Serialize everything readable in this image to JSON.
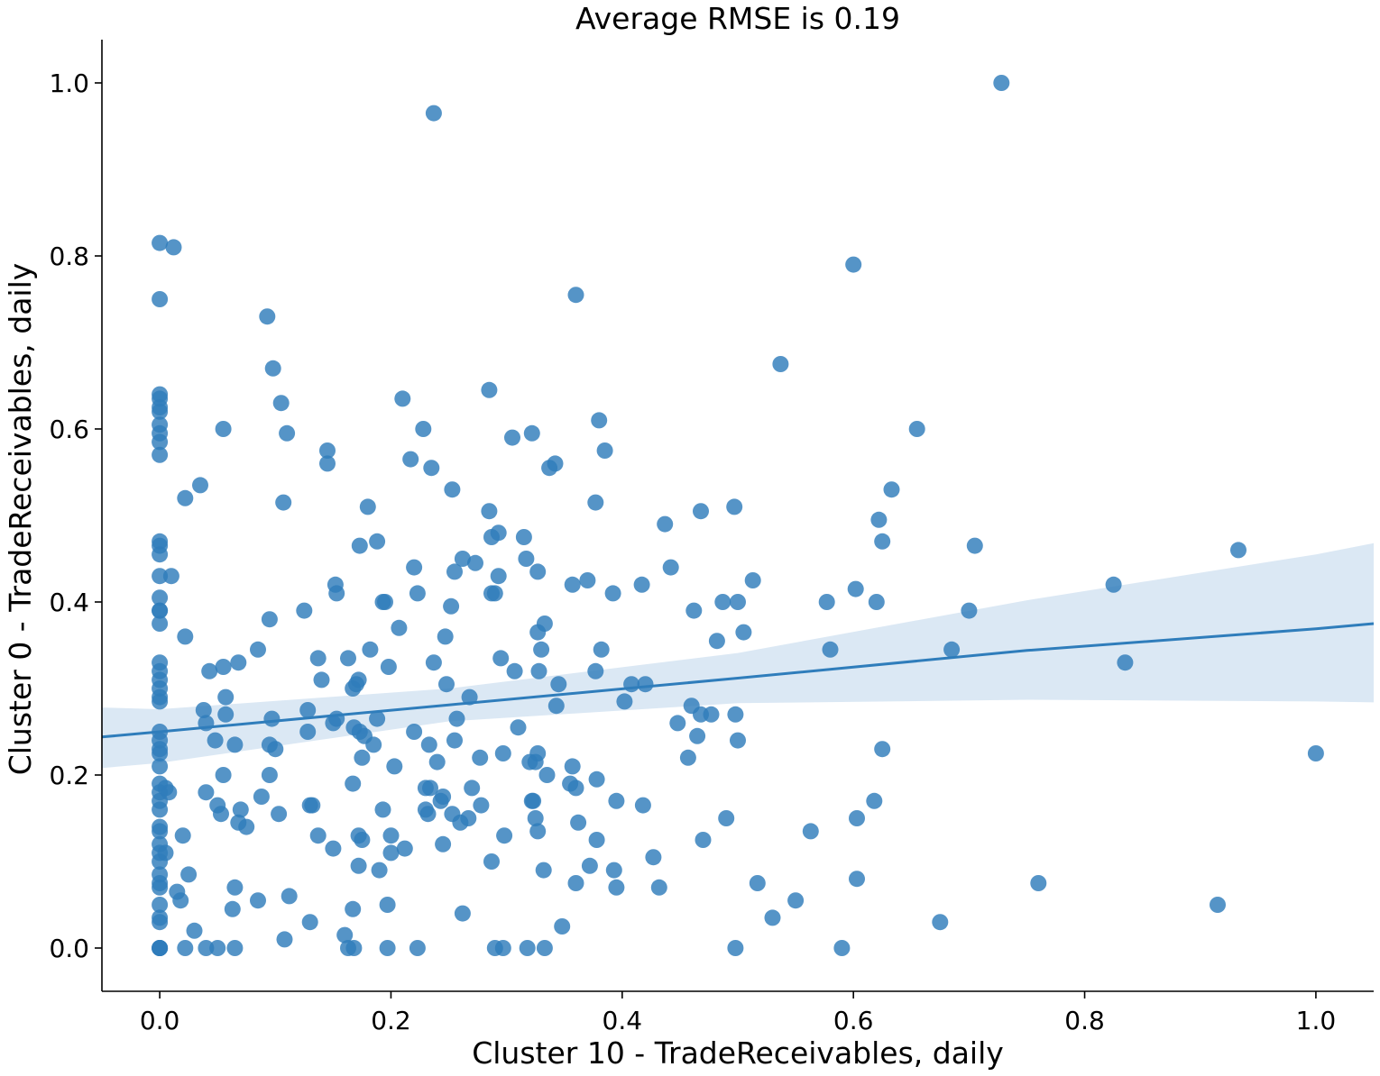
{
  "chart_data": {
    "type": "scatter",
    "title": "Average RMSE is 0.19",
    "xlabel": "Cluster 10 - TradeReceivables, daily",
    "ylabel": "Cluster 0 - TradeReceivables, daily",
    "xlim": [
      -0.05,
      1.05
    ],
    "ylim": [
      -0.05,
      1.05
    ],
    "xticks": [
      0.0,
      0.2,
      0.4,
      0.6,
      0.8,
      1.0
    ],
    "yticks": [
      0.0,
      0.2,
      0.4,
      0.6,
      0.8,
      1.0
    ],
    "tick_labels": [
      "0.0",
      "0.2",
      "0.4",
      "0.6",
      "0.8",
      "1.0"
    ],
    "grid": false,
    "colors": {
      "points": "#2f7dbb",
      "line": "#2f7dbb",
      "band": "#c8dcee"
    },
    "regression": {
      "x": [
        -0.05,
        0.0,
        0.25,
        0.5,
        0.75,
        1.0,
        1.05
      ],
      "y": [
        0.244,
        0.25,
        0.281,
        0.312,
        0.344,
        0.369,
        0.375
      ],
      "lower": [
        0.208,
        0.214,
        0.262,
        0.283,
        0.287,
        0.285,
        0.284
      ],
      "upper": [
        0.278,
        0.276,
        0.3,
        0.341,
        0.402,
        0.455,
        0.468
      ]
    },
    "points": [
      [
        0,
        0
      ],
      [
        0,
        0
      ],
      [
        0,
        0
      ],
      [
        0,
        0
      ],
      [
        0,
        0.03
      ],
      [
        0,
        0.035
      ],
      [
        0,
        0.05
      ],
      [
        0,
        0.07
      ],
      [
        0,
        0.075
      ],
      [
        0,
        0.085
      ],
      [
        0,
        0.1
      ],
      [
        0,
        0.11
      ],
      [
        0,
        0.12
      ],
      [
        0,
        0.135
      ],
      [
        0,
        0.14
      ],
      [
        0,
        0.16
      ],
      [
        0,
        0.17
      ],
      [
        0,
        0.18
      ],
      [
        0,
        0.19
      ],
      [
        0,
        0.21
      ],
      [
        0,
        0.225
      ],
      [
        0,
        0.23
      ],
      [
        0,
        0.24
      ],
      [
        0,
        0.25
      ],
      [
        0,
        0.285
      ],
      [
        0,
        0.29
      ],
      [
        0,
        0.3
      ],
      [
        0,
        0.31
      ],
      [
        0,
        0.32
      ],
      [
        0,
        0.33
      ],
      [
        0,
        0.375
      ],
      [
        0,
        0.39
      ],
      [
        0,
        0.39
      ],
      [
        0,
        0.405
      ],
      [
        0,
        0.43
      ],
      [
        0,
        0.455
      ],
      [
        0,
        0.465
      ],
      [
        0,
        0.47
      ],
      [
        0,
        0.57
      ],
      [
        0,
        0.585
      ],
      [
        0,
        0.595
      ],
      [
        0,
        0.605
      ],
      [
        0,
        0.62
      ],
      [
        0,
        0.625
      ],
      [
        0,
        0.635
      ],
      [
        0,
        0.64
      ],
      [
        0,
        0.75
      ],
      [
        0,
        0.815
      ],
      [
        0.005,
        0.185
      ],
      [
        0.008,
        0.18
      ],
      [
        0.005,
        0.11
      ],
      [
        0.01,
        0.43
      ],
      [
        0.012,
        0.81
      ],
      [
        0.015,
        0.065
      ],
      [
        0.018,
        0.055
      ],
      [
        0.02,
        0.13
      ],
      [
        0.022,
        0.52
      ],
      [
        0.022,
        0.36
      ],
      [
        0.022,
        0
      ],
      [
        0.025,
        0.085
      ],
      [
        0.03,
        0.02
      ],
      [
        0.035,
        0.535
      ],
      [
        0.038,
        0.275
      ],
      [
        0.04,
        0.26
      ],
      [
        0.04,
        0.18
      ],
      [
        0.04,
        0
      ],
      [
        0.043,
        0.32
      ],
      [
        0.048,
        0.24
      ],
      [
        0.05,
        0.165
      ],
      [
        0.05,
        0
      ],
      [
        0.053,
        0.155
      ],
      [
        0.055,
        0.6
      ],
      [
        0.055,
        0.325
      ],
      [
        0.055,
        0.2
      ],
      [
        0.057,
        0.29
      ],
      [
        0.057,
        0.27
      ],
      [
        0.063,
        0.045
      ],
      [
        0.065,
        0.235
      ],
      [
        0.065,
        0.07
      ],
      [
        0.065,
        0
      ],
      [
        0.068,
        0.33
      ],
      [
        0.068,
        0.145
      ],
      [
        0.07,
        0.16
      ],
      [
        0.075,
        0.14
      ],
      [
        0.085,
        0.345
      ],
      [
        0.085,
        0.055
      ],
      [
        0.088,
        0.175
      ],
      [
        0.093,
        0.73
      ],
      [
        0.095,
        0.38
      ],
      [
        0.095,
        0.235
      ],
      [
        0.095,
        0.2
      ],
      [
        0.097,
        0.265
      ],
      [
        0.098,
        0.67
      ],
      [
        0.1,
        0.23
      ],
      [
        0.103,
        0.155
      ],
      [
        0.105,
        0.63
      ],
      [
        0.107,
        0.515
      ],
      [
        0.108,
        0.01
      ],
      [
        0.11,
        0.595
      ],
      [
        0.112,
        0.06
      ],
      [
        0.125,
        0.39
      ],
      [
        0.128,
        0.275
      ],
      [
        0.128,
        0.25
      ],
      [
        0.13,
        0.165
      ],
      [
        0.13,
        0.03
      ],
      [
        0.132,
        0.165
      ],
      [
        0.137,
        0.335
      ],
      [
        0.137,
        0.13
      ],
      [
        0.14,
        0.31
      ],
      [
        0.145,
        0.575
      ],
      [
        0.145,
        0.56
      ],
      [
        0.15,
        0.26
      ],
      [
        0.15,
        0.115
      ],
      [
        0.152,
        0.42
      ],
      [
        0.153,
        0.41
      ],
      [
        0.153,
        0.265
      ],
      [
        0.16,
        0.015
      ],
      [
        0.163,
        0.335
      ],
      [
        0.163,
        0
      ],
      [
        0.167,
        0.3
      ],
      [
        0.167,
        0.19
      ],
      [
        0.167,
        0.045
      ],
      [
        0.168,
        0.255
      ],
      [
        0.168,
        0
      ],
      [
        0.17,
        0.305
      ],
      [
        0.172,
        0.31
      ],
      [
        0.172,
        0.13
      ],
      [
        0.172,
        0.095
      ],
      [
        0.173,
        0.25
      ],
      [
        0.173,
        0.465
      ],
      [
        0.175,
        0.125
      ],
      [
        0.175,
        0.22
      ],
      [
        0.177,
        0.245
      ],
      [
        0.18,
        0.51
      ],
      [
        0.182,
        0.345
      ],
      [
        0.185,
        0.235
      ],
      [
        0.188,
        0.47
      ],
      [
        0.188,
        0.265
      ],
      [
        0.19,
        0.09
      ],
      [
        0.193,
        0.4
      ],
      [
        0.193,
        0.16
      ],
      [
        0.195,
        0.4
      ],
      [
        0.197,
        0.05
      ],
      [
        0.197,
        0
      ],
      [
        0.198,
        0.325
      ],
      [
        0.2,
        0.13
      ],
      [
        0.2,
        0.11
      ],
      [
        0.203,
        0.21
      ],
      [
        0.207,
        0.37
      ],
      [
        0.21,
        0.635
      ],
      [
        0.212,
        0.115
      ],
      [
        0.217,
        0.565
      ],
      [
        0.22,
        0.44
      ],
      [
        0.22,
        0.25
      ],
      [
        0.223,
        0.41
      ],
      [
        0.223,
        0
      ],
      [
        0.228,
        0.6
      ],
      [
        0.23,
        0.185
      ],
      [
        0.23,
        0.16
      ],
      [
        0.232,
        0.155
      ],
      [
        0.233,
        0.235
      ],
      [
        0.234,
        0.185
      ],
      [
        0.235,
        0.555
      ],
      [
        0.237,
        0.965
      ],
      [
        0.237,
        0.33
      ],
      [
        0.24,
        0.215
      ],
      [
        0.243,
        0.17
      ],
      [
        0.245,
        0.175
      ],
      [
        0.245,
        0.12
      ],
      [
        0.247,
        0.36
      ],
      [
        0.248,
        0.305
      ],
      [
        0.252,
        0.395
      ],
      [
        0.253,
        0.155
      ],
      [
        0.253,
        0.53
      ],
      [
        0.255,
        0.435
      ],
      [
        0.255,
        0.24
      ],
      [
        0.257,
        0.265
      ],
      [
        0.26,
        0.145
      ],
      [
        0.262,
        0.45
      ],
      [
        0.262,
        0.04
      ],
      [
        0.267,
        0.15
      ],
      [
        0.268,
        0.29
      ],
      [
        0.27,
        0.185
      ],
      [
        0.273,
        0.445
      ],
      [
        0.277,
        0.22
      ],
      [
        0.278,
        0.165
      ],
      [
        0.285,
        0.645
      ],
      [
        0.285,
        0.505
      ],
      [
        0.287,
        0.41
      ],
      [
        0.287,
        0.475
      ],
      [
        0.287,
        0.1
      ],
      [
        0.29,
        0
      ],
      [
        0.29,
        0.41
      ],
      [
        0.293,
        0.43
      ],
      [
        0.293,
        0.48
      ],
      [
        0.295,
        0.335
      ],
      [
        0.297,
        0.225
      ],
      [
        0.297,
        0
      ],
      [
        0.298,
        0.13
      ],
      [
        0.305,
        0.59
      ],
      [
        0.307,
        0.32
      ],
      [
        0.31,
        0.255
      ],
      [
        0.315,
        0.475
      ],
      [
        0.317,
        0.45
      ],
      [
        0.318,
        0
      ],
      [
        0.32,
        0.215
      ],
      [
        0.322,
        0.595
      ],
      [
        0.322,
        0.17
      ],
      [
        0.323,
        0.17
      ],
      [
        0.325,
        0.15
      ],
      [
        0.325,
        0.215
      ],
      [
        0.327,
        0.225
      ],
      [
        0.327,
        0.135
      ],
      [
        0.327,
        0.435
      ],
      [
        0.327,
        0.365
      ],
      [
        0.328,
        0.32
      ],
      [
        0.33,
        0.345
      ],
      [
        0.332,
        0.09
      ],
      [
        0.333,
        0
      ],
      [
        0.333,
        0.375
      ],
      [
        0.335,
        0.2
      ],
      [
        0.337,
        0.555
      ],
      [
        0.342,
        0.56
      ],
      [
        0.343,
        0.28
      ],
      [
        0.345,
        0.305
      ],
      [
        0.348,
        0.025
      ],
      [
        0.355,
        0.19
      ],
      [
        0.357,
        0.21
      ],
      [
        0.357,
        0.42
      ],
      [
        0.36,
        0.185
      ],
      [
        0.36,
        0.075
      ],
      [
        0.36,
        0.755
      ],
      [
        0.362,
        0.145
      ],
      [
        0.37,
        0.425
      ],
      [
        0.372,
        0.095
      ],
      [
        0.377,
        0.515
      ],
      [
        0.377,
        0.32
      ],
      [
        0.378,
        0.195
      ],
      [
        0.378,
        0.125
      ],
      [
        0.38,
        0.61
      ],
      [
        0.382,
        0.345
      ],
      [
        0.385,
        0.575
      ],
      [
        0.392,
        0.41
      ],
      [
        0.393,
        0.09
      ],
      [
        0.395,
        0.07
      ],
      [
        0.395,
        0.17
      ],
      [
        0.402,
        0.285
      ],
      [
        0.408,
        0.305
      ],
      [
        0.417,
        0.42
      ],
      [
        0.418,
        0.165
      ],
      [
        0.42,
        0.305
      ],
      [
        0.427,
        0.105
      ],
      [
        0.432,
        0.07
      ],
      [
        0.437,
        0.49
      ],
      [
        0.442,
        0.44
      ],
      [
        0.448,
        0.26
      ],
      [
        0.457,
        0.22
      ],
      [
        0.46,
        0.28
      ],
      [
        0.462,
        0.39
      ],
      [
        0.465,
        0.245
      ],
      [
        0.468,
        0.505
      ],
      [
        0.468,
        0.27
      ],
      [
        0.47,
        0.125
      ],
      [
        0.477,
        0.27
      ],
      [
        0.482,
        0.355
      ],
      [
        0.487,
        0.4
      ],
      [
        0.49,
        0.15
      ],
      [
        0.497,
        0.51
      ],
      [
        0.498,
        0.27
      ],
      [
        0.498,
        0
      ],
      [
        0.5,
        0.4
      ],
      [
        0.5,
        0.24
      ],
      [
        0.505,
        0.365
      ],
      [
        0.513,
        0.425
      ],
      [
        0.517,
        0.075
      ],
      [
        0.53,
        0.035
      ],
      [
        0.537,
        0.675
      ],
      [
        0.55,
        0.055
      ],
      [
        0.563,
        0.135
      ],
      [
        0.577,
        0.4
      ],
      [
        0.58,
        0.345
      ],
      [
        0.59,
        0
      ],
      [
        0.6,
        0.79
      ],
      [
        0.602,
        0.415
      ],
      [
        0.603,
        0.15
      ],
      [
        0.603,
        0.08
      ],
      [
        0.618,
        0.17
      ],
      [
        0.62,
        0.4
      ],
      [
        0.622,
        0.495
      ],
      [
        0.625,
        0.47
      ],
      [
        0.625,
        0.23
      ],
      [
        0.633,
        0.53
      ],
      [
        0.655,
        0.6
      ],
      [
        0.675,
        0.03
      ],
      [
        0.685,
        0.345
      ],
      [
        0.7,
        0.39
      ],
      [
        0.705,
        0.465
      ],
      [
        0.728,
        1.0
      ],
      [
        0.76,
        0.075
      ],
      [
        0.825,
        0.42
      ],
      [
        0.835,
        0.33
      ],
      [
        0.915,
        0.05
      ],
      [
        0.933,
        0.46
      ],
      [
        1.0,
        0.225
      ]
    ]
  }
}
